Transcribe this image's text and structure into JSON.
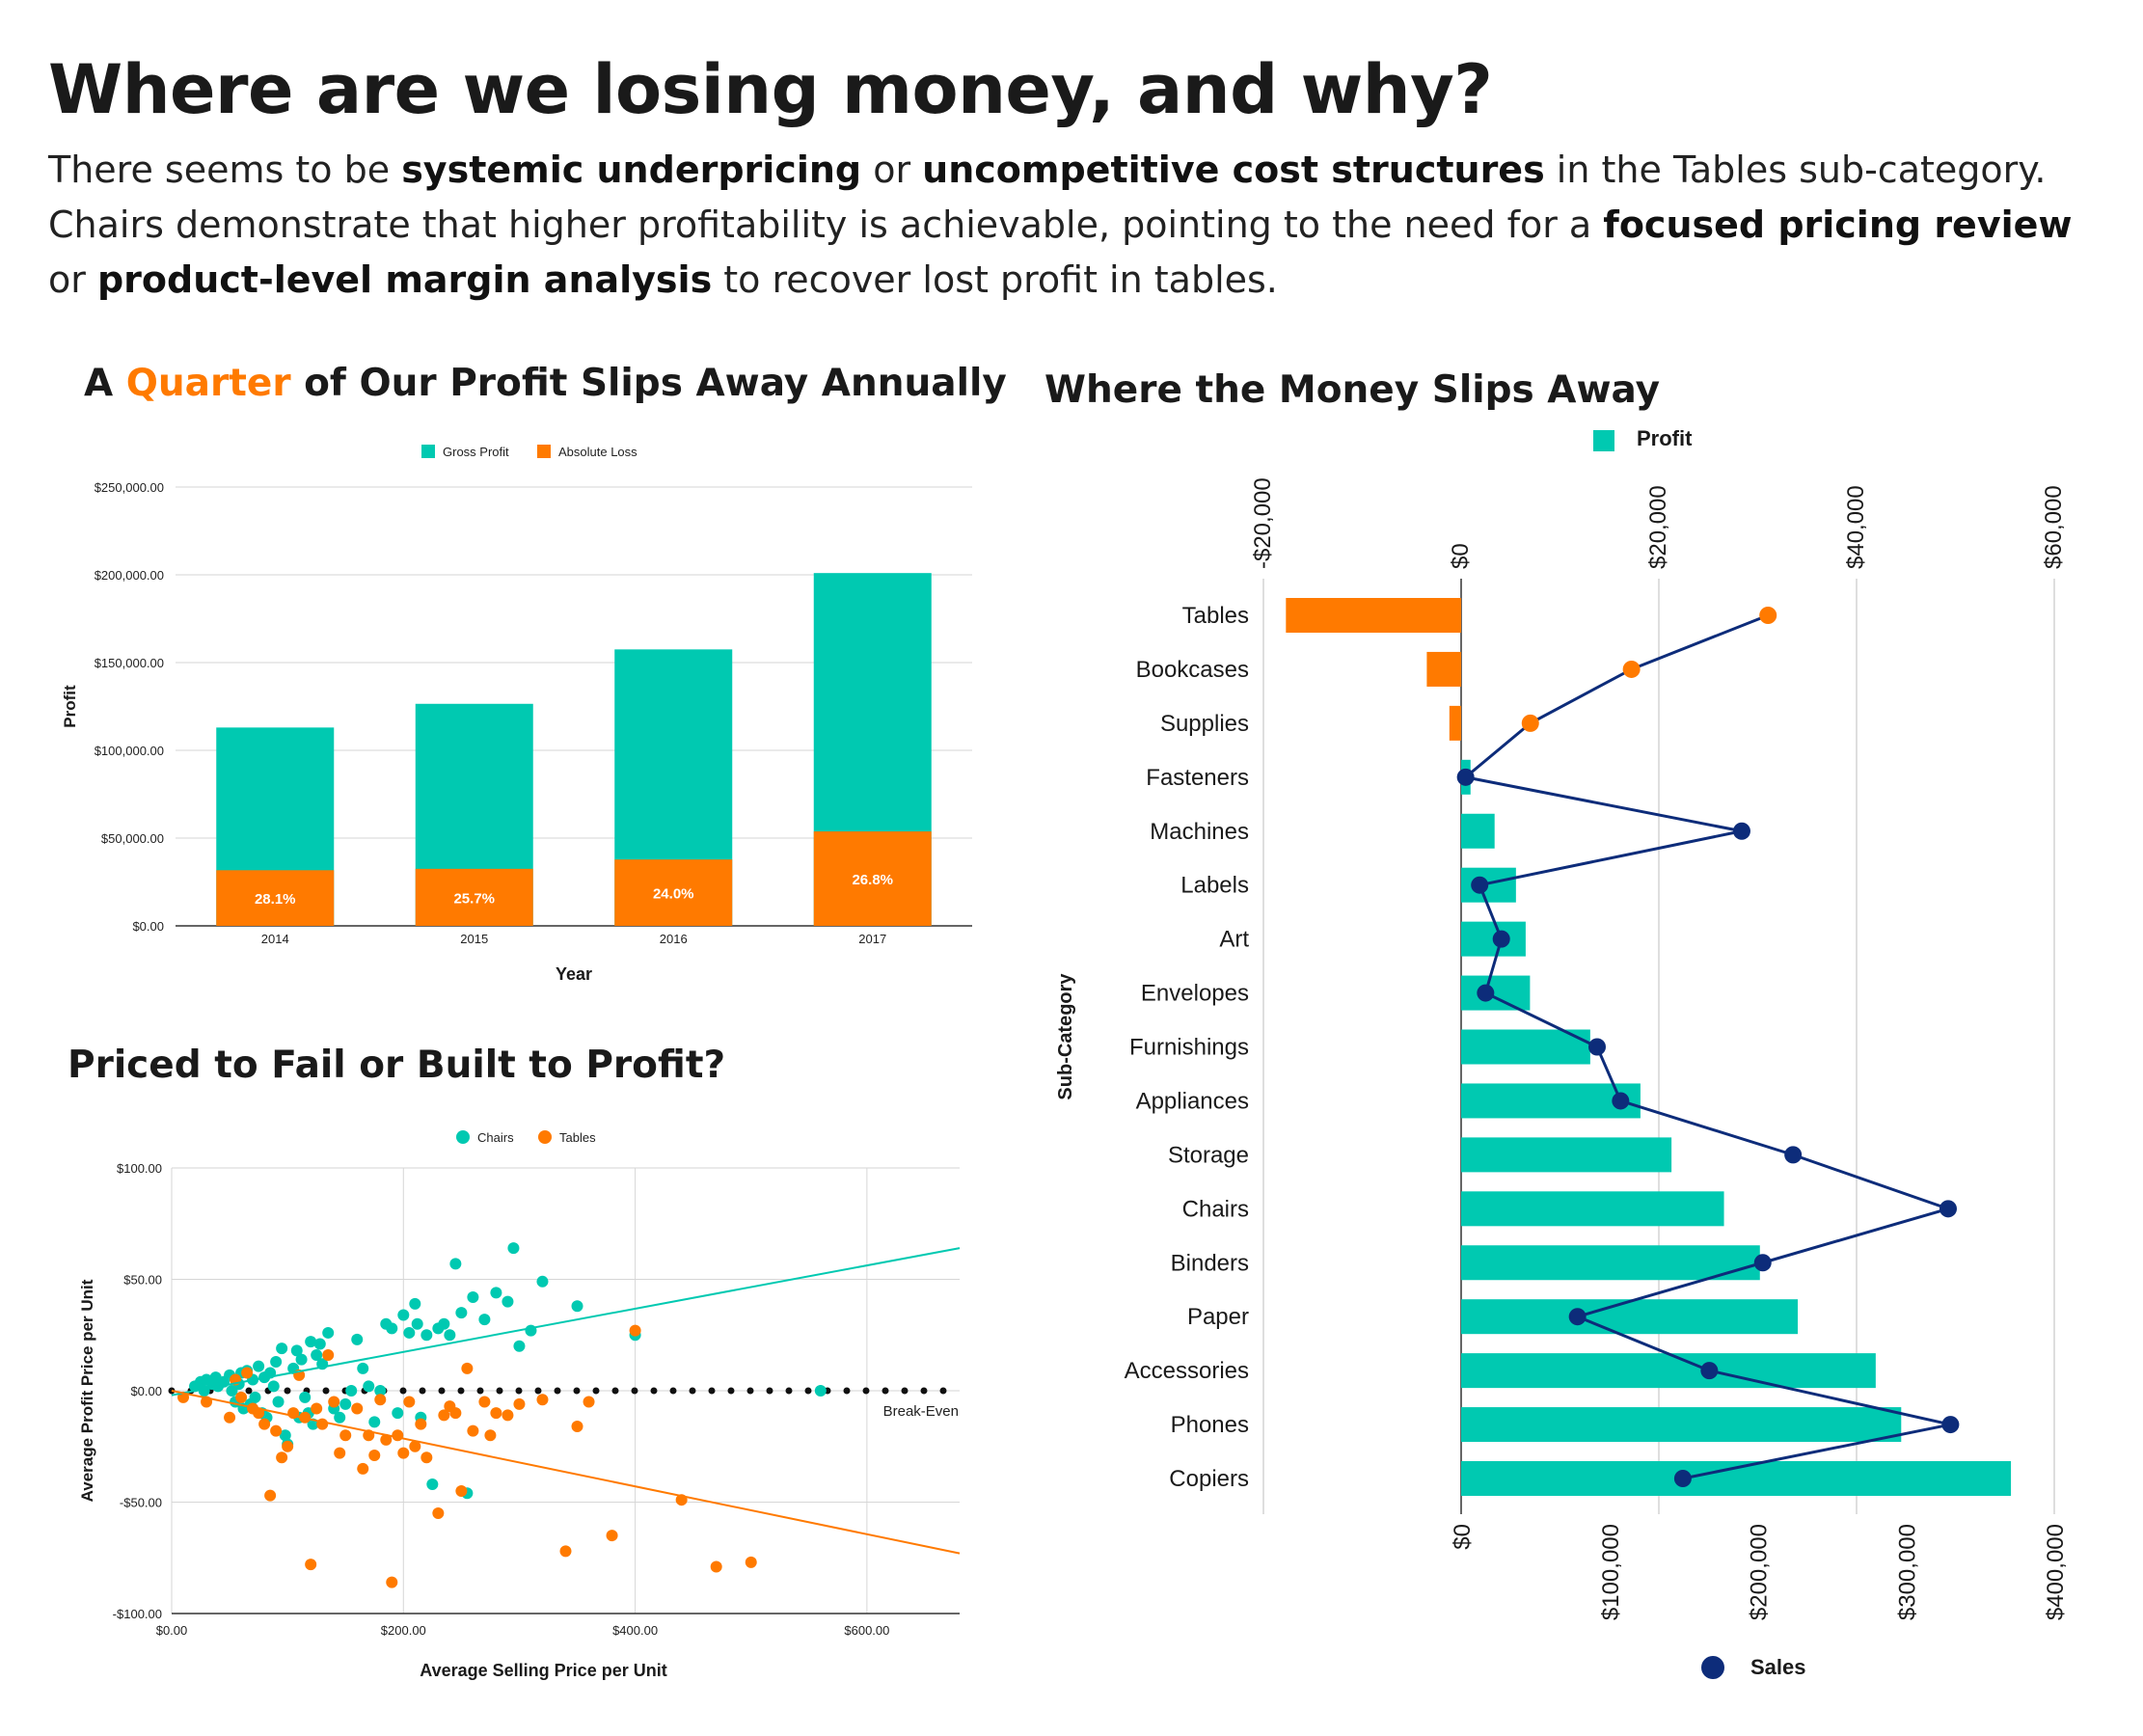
{
  "header": {
    "title": "Where are we losing money, and why?",
    "desc": [
      {
        "t": "There seems to be ",
        "b": false
      },
      {
        "t": "systemic underpricing",
        "b": true
      },
      {
        "t": " or ",
        "b": false
      },
      {
        "t": "uncompetitive cost structures",
        "b": true
      },
      {
        "t": " in the Tables sub-category. Chairs demonstrate that higher profitability is achievable, pointing to the need for a ",
        "b": false
      },
      {
        "t": "focused pricing review",
        "b": true
      },
      {
        "t": " or ",
        "b": false
      },
      {
        "t": "product-level margin analysis",
        "b": true
      },
      {
        "t": " to recover lost profit in tables.",
        "b": false
      }
    ]
  },
  "titles": {
    "bar_pre": "A ",
    "bar_hl": "Quarter",
    "bar_post": " of Our Profit Slips Away Annually",
    "scatter": "Priced to Fail or Built to Profit?",
    "subcat": "Where the Money Slips Away"
  },
  "colors": {
    "teal": "#00c9b1",
    "orange": "#ff7a00",
    "navy": "#0d2c7a",
    "grid": "#d6d6d6"
  },
  "chart_data": [
    {
      "type": "bar",
      "stacked": true,
      "categories": [
        "2014",
        "2015",
        "2016",
        "2017"
      ],
      "series": [
        {
          "name": "Gross Profit",
          "values": [
            113000,
            126500,
            157500,
            201000
          ],
          "color": "#00c9b1"
        },
        {
          "name": "Absolute Loss",
          "values": [
            31700,
            32500,
            37800,
            53800
          ],
          "color": "#ff7a00"
        }
      ],
      "data_labels": [
        "28.1%",
        "25.7%",
        "24.0%",
        "26.8%"
      ],
      "xlabel": "Year",
      "ylabel": "Profit",
      "ylim": [
        0,
        250000
      ],
      "yticks": [
        0,
        50000,
        100000,
        150000,
        200000,
        250000
      ],
      "ytick_labels": [
        "$0.00",
        "$50,000.00",
        "$100,000.00",
        "$150,000.00",
        "$200,000.00",
        "$250,000.00"
      ],
      "legend": "top-center",
      "grid": true
    },
    {
      "type": "scatter",
      "xlabel": "Average Selling Price per Unit",
      "ylabel": "Average Profit Price per Unit",
      "xlim": [
        0,
        680
      ],
      "ylim": [
        -100,
        100
      ],
      "xticks": [
        0,
        200,
        400,
        600
      ],
      "xtick_labels": [
        "$0.00",
        "$200.00",
        "$400.00",
        "$600.00"
      ],
      "yticks": [
        -100,
        -50,
        0,
        50,
        100
      ],
      "ytick_labels": [
        "-$100.00",
        "-$50.00",
        "$0.00",
        "$50.00",
        "$100.00"
      ],
      "legend": "top-center",
      "grid": true,
      "break_even_label": "Break-Even",
      "series": [
        {
          "name": "Chairs",
          "color": "#00c9b1",
          "trend": [
            [
              0,
              -2
            ],
            [
              680,
              64
            ]
          ],
          "points": [
            [
              20,
              2
            ],
            [
              25,
              4
            ],
            [
              28,
              0
            ],
            [
              30,
              5
            ],
            [
              35,
              3
            ],
            [
              38,
              6
            ],
            [
              40,
              2
            ],
            [
              45,
              4
            ],
            [
              50,
              7
            ],
            [
              52,
              0
            ],
            [
              55,
              -5
            ],
            [
              58,
              3
            ],
            [
              60,
              8
            ],
            [
              62,
              -8
            ],
            [
              65,
              9
            ],
            [
              68,
              -6
            ],
            [
              70,
              5
            ],
            [
              72,
              -3
            ],
            [
              75,
              11
            ],
            [
              78,
              -10
            ],
            [
              80,
              6
            ],
            [
              82,
              -12
            ],
            [
              85,
              8
            ],
            [
              88,
              2
            ],
            [
              90,
              13
            ],
            [
              92,
              -5
            ],
            [
              95,
              19
            ],
            [
              98,
              -20
            ],
            [
              100,
              -24
            ],
            [
              105,
              10
            ],
            [
              108,
              18
            ],
            [
              110,
              -12
            ],
            [
              112,
              14
            ],
            [
              115,
              -3
            ],
            [
              118,
              -10
            ],
            [
              120,
              22
            ],
            [
              122,
              -15
            ],
            [
              125,
              16
            ],
            [
              128,
              21
            ],
            [
              130,
              12
            ],
            [
              135,
              26
            ],
            [
              140,
              -8
            ],
            [
              145,
              -12
            ],
            [
              150,
              -6
            ],
            [
              155,
              0
            ],
            [
              160,
              23
            ],
            [
              165,
              10
            ],
            [
              170,
              2
            ],
            [
              175,
              -14
            ],
            [
              180,
              0
            ],
            [
              185,
              30
            ],
            [
              190,
              28
            ],
            [
              195,
              -10
            ],
            [
              200,
              34
            ],
            [
              205,
              26
            ],
            [
              210,
              39
            ],
            [
              212,
              30
            ],
            [
              215,
              -12
            ],
            [
              220,
              25
            ],
            [
              225,
              -42
            ],
            [
              230,
              28
            ],
            [
              235,
              30
            ],
            [
              240,
              25
            ],
            [
              245,
              57
            ],
            [
              250,
              35
            ],
            [
              255,
              -46
            ],
            [
              260,
              42
            ],
            [
              270,
              32
            ],
            [
              280,
              44
            ],
            [
              290,
              40
            ],
            [
              295,
              64
            ],
            [
              300,
              20
            ],
            [
              310,
              27
            ],
            [
              320,
              49
            ],
            [
              350,
              38
            ],
            [
              400,
              25
            ],
            [
              560,
              0
            ]
          ]
        },
        {
          "name": "Tables",
          "color": "#ff7a00",
          "trend": [
            [
              0,
              0
            ],
            [
              680,
              -73
            ]
          ],
          "points": [
            [
              10,
              -3
            ],
            [
              30,
              -5
            ],
            [
              50,
              -12
            ],
            [
              55,
              5
            ],
            [
              60,
              -3
            ],
            [
              65,
              8
            ],
            [
              70,
              -8
            ],
            [
              75,
              -10
            ],
            [
              80,
              -15
            ],
            [
              85,
              -47
            ],
            [
              90,
              -18
            ],
            [
              95,
              -30
            ],
            [
              100,
              -25
            ],
            [
              105,
              -10
            ],
            [
              110,
              7
            ],
            [
              115,
              -12
            ],
            [
              120,
              -78
            ],
            [
              125,
              -8
            ],
            [
              130,
              -15
            ],
            [
              135,
              16
            ],
            [
              140,
              -5
            ],
            [
              145,
              -28
            ],
            [
              150,
              -20
            ],
            [
              160,
              -8
            ],
            [
              165,
              -35
            ],
            [
              170,
              -20
            ],
            [
              175,
              -29
            ],
            [
              180,
              -4
            ],
            [
              185,
              -22
            ],
            [
              190,
              -86
            ],
            [
              195,
              -20
            ],
            [
              200,
              -28
            ],
            [
              205,
              -5
            ],
            [
              210,
              -25
            ],
            [
              215,
              -15
            ],
            [
              220,
              -30
            ],
            [
              230,
              -55
            ],
            [
              235,
              -11
            ],
            [
              240,
              -7
            ],
            [
              245,
              -10
            ],
            [
              250,
              -45
            ],
            [
              255,
              10
            ],
            [
              260,
              -18
            ],
            [
              270,
              -5
            ],
            [
              275,
              -20
            ],
            [
              280,
              -10
            ],
            [
              290,
              -11
            ],
            [
              300,
              -6
            ],
            [
              320,
              -4
            ],
            [
              340,
              -72
            ],
            [
              350,
              -16
            ],
            [
              360,
              -5
            ],
            [
              380,
              -65
            ],
            [
              400,
              27
            ],
            [
              440,
              -49
            ],
            [
              470,
              -79
            ],
            [
              500,
              -77
            ]
          ]
        }
      ]
    },
    {
      "type": "bar+line",
      "orientation": "horizontal",
      "categories": [
        "Tables",
        "Bookcases",
        "Supplies",
        "Fasteners",
        "Machines",
        "Labels",
        "Art",
        "Envelopes",
        "Furnishings",
        "Appliances",
        "Storage",
        "Chairs",
        "Binders",
        "Paper",
        "Accessories",
        "Phones",
        "Copiers"
      ],
      "series": [
        {
          "name": "Profit",
          "axis": "top",
          "values": [
            -17725,
            -3473,
            -1189,
            950,
            3385,
            5546,
            6528,
            6964,
            13059,
            18138,
            21279,
            26590,
            30222,
            34054,
            41937,
            44516,
            55618
          ]
        },
        {
          "name": "Sales",
          "axis": "bottom",
          "values": [
            206966,
            114880,
            46674,
            3024,
            189239,
            12486,
            27119,
            16476,
            91705,
            107532,
            223844,
            328449,
            203413,
            78479,
            167380,
            330007,
            149528
          ]
        }
      ],
      "profit_axis": {
        "lim": [
          -20000,
          60000
        ],
        "ticks": [
          -20000,
          0,
          20000,
          40000,
          60000
        ],
        "tick_labels": [
          "-$20,000",
          "$0",
          "$20,000",
          "$40,000",
          "$60,000"
        ]
      },
      "sales_axis": {
        "lim": [
          0,
          400000
        ],
        "ticks": [
          0,
          100000,
          200000,
          300000,
          400000
        ],
        "tick_labels": [
          "$0",
          "$100,000",
          "$200,000",
          "$300,000",
          "$400,000"
        ]
      },
      "ylabel": "Sub-Category",
      "legend": "top / bottom",
      "grid": true
    }
  ]
}
